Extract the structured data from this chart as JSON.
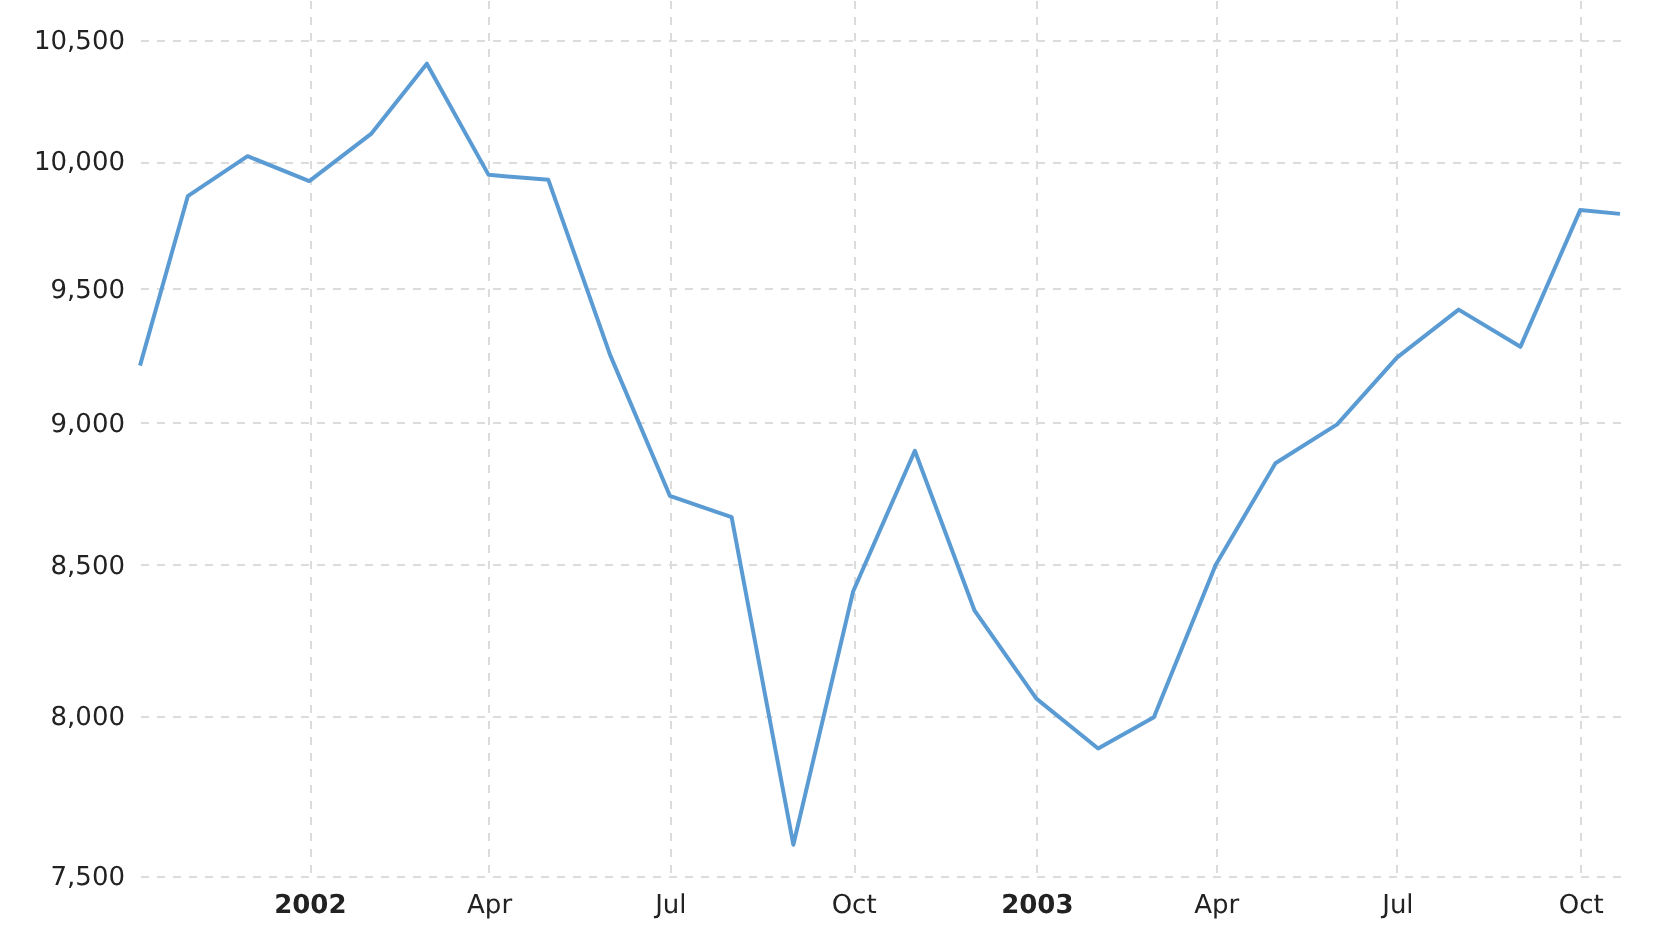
{
  "chart_data": {
    "type": "line",
    "log": true,
    "grid": true,
    "line_style": "solid",
    "x": [
      "2001-10-08",
      "2001-11-01",
      "2001-12-01",
      "2002-01-01",
      "2002-02-01",
      "2002-03-01",
      "2002-04-01",
      "2002-05-01",
      "2002-06-01",
      "2002-07-01",
      "2002-08-01",
      "2002-09-01",
      "2002-10-01",
      "2002-11-01",
      "2002-12-01",
      "2003-01-01",
      "2003-02-01",
      "2003-03-01",
      "2003-04-01",
      "2003-05-01",
      "2003-06-01",
      "2003-07-01",
      "2003-08-01",
      "2003-09-01",
      "2003-10-01",
      "2003-10-21"
    ],
    "series": [
      {
        "color": "#5a9bd4",
        "values": [
          9210,
          9860,
          10020,
          9920,
          10110,
          10400,
          9945,
          9925,
          9250,
          8740,
          8665,
          7595,
          8410,
          8900,
          8345,
          8055,
          7895,
          7995,
          8500,
          8855,
          8995,
          9240,
          9420,
          9280,
          9805,
          9790
        ]
      }
    ],
    "xlim": [
      "2001-10-08",
      "2003-10-21"
    ],
    "xticks": [
      {
        "value": "2002-01-01",
        "label": "2002"
      },
      {
        "value": "2002-04-01",
        "label": "Apr"
      },
      {
        "value": "2002-07-01",
        "label": "Jul"
      },
      {
        "value": "2002-10-01",
        "label": "Oct"
      },
      {
        "value": "2003-01-01",
        "label": "2003"
      },
      {
        "value": "2003-04-01",
        "label": "Apr"
      },
      {
        "value": "2003-07-01",
        "label": "Jul"
      },
      {
        "value": "2003-10-01",
        "label": "Oct"
      }
    ],
    "ylim": [
      7500,
      10670
    ],
    "yticks": [
      {
        "value": 7500,
        "label": "7,500"
      },
      {
        "value": 8000,
        "label": "8,000"
      },
      {
        "value": 8500,
        "label": "8,500"
      },
      {
        "value": 9000,
        "label": "9,000"
      },
      {
        "value": 9500,
        "label": "9,500"
      },
      {
        "value": 10000,
        "label": "10,000"
      },
      {
        "value": 10500,
        "label": "10,500"
      }
    ]
  }
}
